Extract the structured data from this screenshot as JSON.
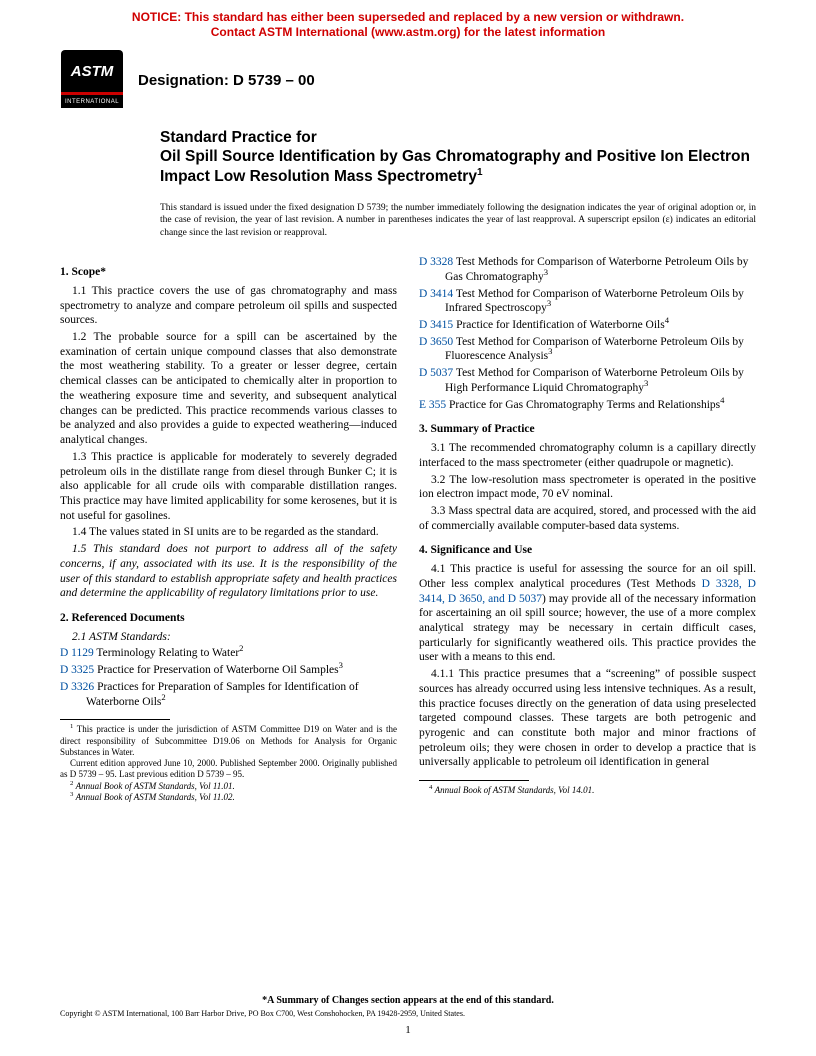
{
  "notice": {
    "line1": "NOTICE: This standard has either been superseded and replaced by a new version or withdrawn.",
    "line2": "Contact ASTM International (www.astm.org) for the latest information"
  },
  "logo": {
    "acronym": "ASTM",
    "sub": "INTERNATIONAL"
  },
  "designation": "Designation: D 5739 – 00",
  "title": {
    "lead": "Standard Practice for",
    "main": "Oil Spill Source Identification by Gas Chromatography and Positive Ion Electron Impact Low Resolution Mass Spectrometry",
    "sup": "1"
  },
  "issued": "This standard is issued under the fixed designation D 5739; the number immediately following the designation indicates the year of original adoption or, in the case of revision, the year of last revision. A number in parentheses indicates the year of last reapproval. A superscript epsilon (ε) indicates an editorial change since the last revision or reapproval.",
  "s1": {
    "head": "1. Scope*",
    "p1": "1.1 This practice covers the use of gas chromatography and mass spectrometry to analyze and compare petroleum oil spills and suspected sources.",
    "p2": "1.2 The probable source for a spill can be ascertained by the examination of certain unique compound classes that also demonstrate the most weathering stability. To a greater or lesser degree, certain chemical classes can be anticipated to chemically alter in proportion to the weathering exposure time and severity, and subsequent analytical changes can be predicted. This practice recommends various classes to be analyzed and also provides a guide to expected weathering—induced analytical changes.",
    "p3": "1.3 This practice is applicable for moderately to severely degraded petroleum oils in the distillate range from diesel through Bunker C; it is also applicable for all crude oils with comparable distillation ranges. This practice may have limited applicability for some kerosenes, but it is not useful for gasolines.",
    "p4": "1.4 The values stated in SI units are to be regarded as the standard.",
    "p5": "1.5 This standard does not purport to address all of the safety concerns, if any, associated with its use. It is the responsibility of the user of this standard to establish appropriate safety and health practices and determine the applicability of regulatory limitations prior to use."
  },
  "s2": {
    "head": "2. Referenced Documents",
    "sub": "2.1 ASTM Standards:",
    "refsL": [
      {
        "code": "D 1129",
        "text": "Terminology Relating to Water",
        "sup": "2"
      },
      {
        "code": "D 3325",
        "text": "Practice for Preservation of Waterborne Oil Samples",
        "sup": "3"
      },
      {
        "code": "D 3326",
        "text": "Practices for Preparation of Samples for Identification of Waterborne Oils",
        "sup": "2"
      }
    ],
    "refsR": [
      {
        "code": "D 3328",
        "text": "Test Methods for Comparison of Waterborne Petroleum Oils by Gas Chromatography",
        "sup": "3"
      },
      {
        "code": "D 3414",
        "text": "Test Method for Comparison of Waterborne Petroleum Oils by Infrared Spectroscopy",
        "sup": "3"
      },
      {
        "code": "D 3415",
        "text": "Practice for Identification of Waterborne Oils",
        "sup": "4"
      },
      {
        "code": "D 3650",
        "text": "Test Method for Comparison of Waterborne Petroleum Oils by Fluorescence Analysis",
        "sup": "3"
      },
      {
        "code": "D 5037",
        "text": "Test Method for Comparison of Waterborne Petroleum Oils by High Performance Liquid Chromatography",
        "sup": "3"
      },
      {
        "code": "E 355",
        "text": "Practice for Gas Chromatography Terms and Relationships",
        "sup": "4"
      }
    ]
  },
  "s3": {
    "head": "3. Summary of Practice",
    "p1": "3.1 The recommended chromatography column is a capillary directly interfaced to the mass spectrometer (either quadrupole or magnetic).",
    "p2": "3.2 The low-resolution mass spectrometer is operated in the positive ion electron impact mode, 70 eV nominal.",
    "p3": "3.3 Mass spectral data are acquired, stored, and processed with the aid of commercially available computer-based data systems."
  },
  "s4": {
    "head": "4. Significance and Use",
    "p1a": "4.1 This practice is useful for assessing the source for an oil spill. Other less complex analytical procedures (Test Methods ",
    "p1link": "D 3328, D 3414, D 3650, and D 5037",
    "p1b": ") may provide all of the necessary information for ascertaining an oil spill source; however, the use of a more complex analytical strategy may be necessary in certain difficult cases, particularly for significantly weathered oils. This practice provides the user with a means to this end.",
    "p2": "4.1.1 This practice presumes that a “screening” of possible suspect sources has already occurred using less intensive techniques. As a result, this practice focuses directly on the generation of data using preselected targeted compound classes. These targets are both petrogenic and pyrogenic and can constitute both major and minor fractions of petroleum oils; they were chosen in order to develop a practice that is universally applicable to petroleum oil identification in general"
  },
  "footnotesL": {
    "f1": "This practice is under the jurisdiction of ASTM Committee D19 on Water and is the direct responsibility of Subcommittee D19.06 on Methods for Analysis for Organic Substances in Water.",
    "f1b": "Current edition approved June 10, 2000. Published September 2000. Originally published as D 5739 – 95. Last previous edition D 5739 – 95.",
    "f2": "Annual Book of ASTM Standards, Vol 11.01.",
    "f3": "Annual Book of ASTM Standards, Vol 11.02."
  },
  "footnotesR": {
    "f4": "Annual Book of ASTM Standards, Vol 14.01."
  },
  "foot": {
    "summary": "*A Summary of Changes section appears at the end of this standard.",
    "copy": "Copyright © ASTM International, 100 Barr Harbor Drive, PO Box C700, West Conshohocken, PA 19428-2959, United States.",
    "page": "1"
  }
}
